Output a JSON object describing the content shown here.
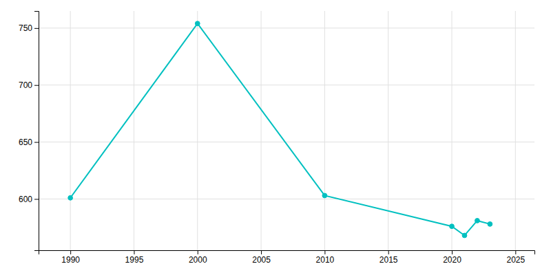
{
  "chart_data": {
    "type": "line",
    "x": [
      1990,
      2000,
      2010,
      2020,
      2021,
      2022,
      2023
    ],
    "values": [
      601,
      754,
      603,
      576,
      568,
      581,
      578
    ],
    "color": "#00c0c0",
    "marker": "circle",
    "xlim": [
      1987.5,
      2026.5
    ],
    "ylim": [
      555,
      765
    ],
    "xticks": [
      1990,
      1995,
      2000,
      2005,
      2010,
      2015,
      2020,
      2025
    ],
    "yticks": [
      600,
      650,
      700,
      750
    ],
    "grid": true
  }
}
